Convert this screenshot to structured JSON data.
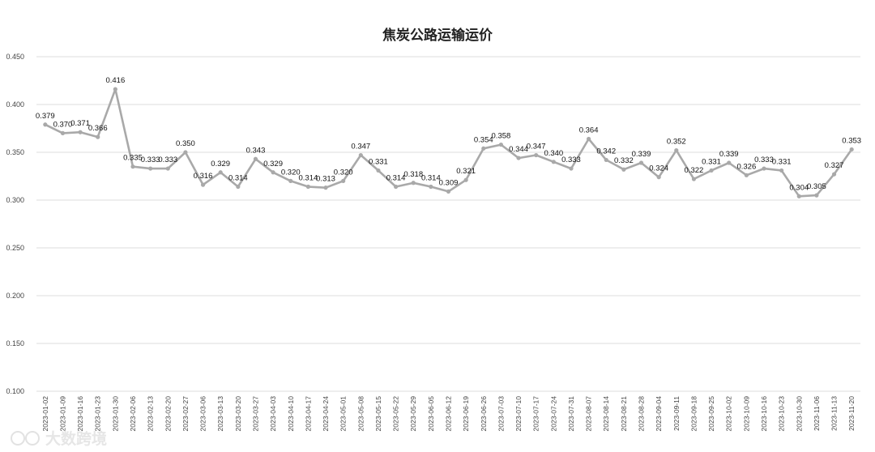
{
  "chart_data": {
    "type": "line",
    "title": "焦炭公路运输运价",
    "xlabel": "",
    "ylabel": "",
    "ylim": [
      0.1,
      0.45
    ],
    "yticks": [
      "0.100",
      "0.150",
      "0.200",
      "0.250",
      "0.300",
      "0.350",
      "0.400",
      "0.450"
    ],
    "grid": true,
    "legend": "none",
    "line_color": "#a9a9a9",
    "x": [
      "2023-01-02",
      "2023-01-09",
      "2023-01-16",
      "2023-01-23",
      "2023-01-30",
      "2023-02-06",
      "2023-02-13",
      "2023-02-20",
      "2023-02-27",
      "2023-03-06",
      "2023-03-13",
      "2023-03-20",
      "2023-03-27",
      "2023-04-03",
      "2023-04-10",
      "2023-04-17",
      "2023-04-24",
      "2023-05-01",
      "2023-05-08",
      "2023-05-15",
      "2023-05-22",
      "2023-05-29",
      "2023-06-05",
      "2023-06-12",
      "2023-06-19",
      "2023-06-26",
      "2023-07-03",
      "2023-07-10",
      "2023-07-17",
      "2023-07-24",
      "2023-07-31",
      "2023-08-07",
      "2023-08-14",
      "2023-08-21",
      "2023-08-28",
      "2023-09-04",
      "2023-09-11",
      "2023-09-18",
      "2023-09-25",
      "2023-10-02",
      "2023-10-09",
      "2023-10-16",
      "2023-10-23",
      "2023-10-30",
      "2023-11-06",
      "2023-11-13",
      "2023-11-20"
    ],
    "values": [
      0.379,
      0.37,
      0.371,
      0.366,
      0.416,
      0.335,
      0.333,
      0.333,
      0.35,
      0.316,
      0.329,
      0.314,
      0.343,
      0.329,
      0.32,
      0.314,
      0.313,
      0.32,
      0.347,
      0.331,
      0.314,
      0.318,
      0.314,
      0.309,
      0.321,
      0.354,
      0.358,
      0.344,
      0.347,
      0.34,
      0.333,
      0.364,
      0.342,
      0.332,
      0.339,
      0.324,
      0.352,
      0.322,
      0.331,
      0.339,
      0.326,
      0.333,
      0.331,
      0.304,
      0.305,
      0.327,
      0.353
    ]
  },
  "watermark": "大数跨境"
}
